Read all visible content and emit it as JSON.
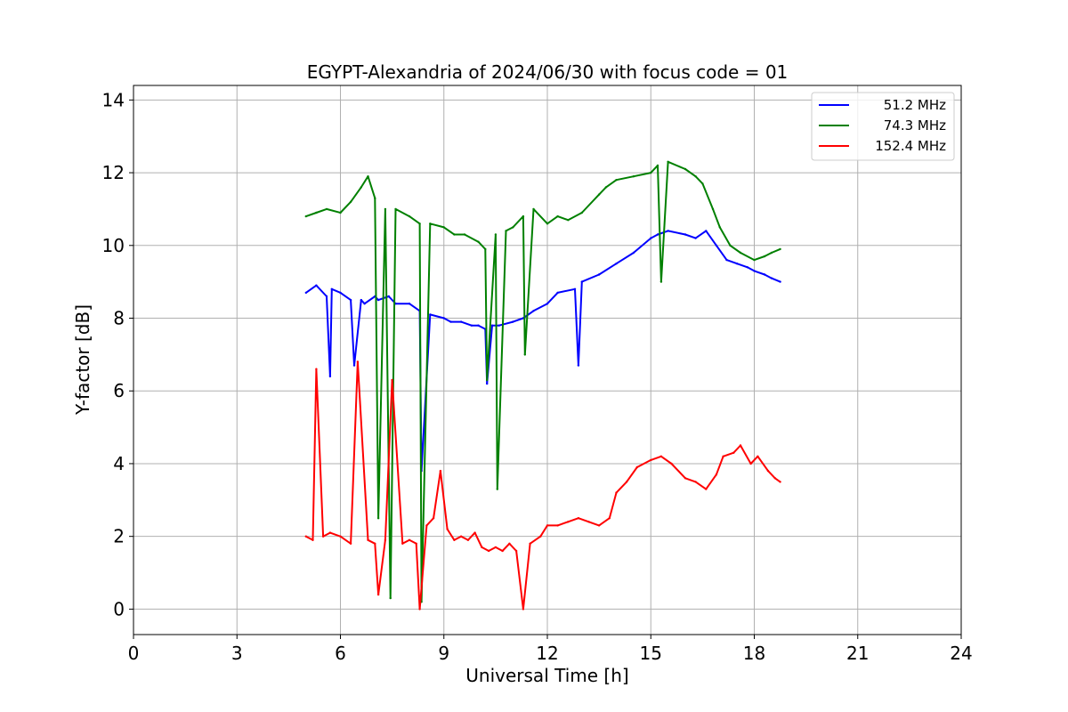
{
  "chart_data": {
    "type": "line",
    "title": "EGYPT-Alexandria of 2024/06/30 with focus code = 01",
    "xlabel": "Universal Time [h]",
    "ylabel": "Y-factor [dB]",
    "xlim": [
      0,
      24
    ],
    "ylim": [
      -0.7,
      14.4
    ],
    "xticks": [
      0,
      3,
      6,
      9,
      12,
      15,
      18,
      21,
      24
    ],
    "yticks": [
      0,
      2,
      4,
      6,
      8,
      10,
      12,
      14
    ],
    "grid": true,
    "legend_position": "top-right",
    "series": [
      {
        "name": "51.2 MHz",
        "color": "#0000ff",
        "x": [
          5.0,
          5.3,
          5.6,
          5.7,
          5.75,
          6.0,
          6.3,
          6.4,
          6.6,
          6.7,
          7.0,
          7.1,
          7.4,
          7.6,
          8.0,
          8.3,
          8.35,
          8.6,
          9.0,
          9.2,
          9.5,
          9.8,
          10.0,
          10.2,
          10.25,
          10.4,
          10.6,
          11.0,
          11.3,
          11.6,
          12.0,
          12.3,
          12.8,
          12.9,
          13.0,
          13.5,
          14.0,
          14.5,
          15.0,
          15.2,
          15.5,
          16.0,
          16.3,
          16.6,
          16.9,
          17.2,
          17.5,
          17.8,
          18.0,
          18.3,
          18.5,
          18.75
        ],
        "y": [
          8.7,
          8.9,
          8.6,
          6.4,
          8.8,
          8.7,
          8.5,
          6.7,
          8.5,
          8.4,
          8.6,
          8.5,
          8.6,
          8.4,
          8.4,
          8.2,
          3.8,
          8.1,
          8.0,
          7.9,
          7.9,
          7.8,
          7.8,
          7.7,
          6.2,
          7.8,
          7.8,
          7.9,
          8.0,
          8.2,
          8.4,
          8.7,
          8.8,
          6.7,
          9.0,
          9.2,
          9.5,
          9.8,
          10.2,
          10.3,
          10.4,
          10.3,
          10.2,
          10.4,
          10.0,
          9.6,
          9.5,
          9.4,
          9.3,
          9.2,
          9.1,
          9.0
        ]
      },
      {
        "name": "74.3 MHz",
        "color": "#008000",
        "x": [
          5.0,
          5.3,
          5.6,
          6.0,
          6.3,
          6.6,
          6.8,
          7.0,
          7.1,
          7.3,
          7.45,
          7.6,
          8.0,
          8.3,
          8.35,
          8.6,
          9.0,
          9.3,
          9.6,
          10.0,
          10.2,
          10.25,
          10.5,
          10.55,
          10.8,
          11.0,
          11.3,
          11.35,
          11.6,
          12.0,
          12.3,
          12.6,
          13.0,
          13.5,
          13.7,
          14.0,
          14.5,
          15.0,
          15.2,
          15.3,
          15.5,
          16.0,
          16.3,
          16.5,
          16.8,
          17.0,
          17.3,
          17.6,
          18.0,
          18.3,
          18.5,
          18.75
        ],
        "y": [
          10.8,
          10.9,
          11.0,
          10.9,
          11.2,
          11.6,
          11.9,
          11.3,
          2.5,
          11.0,
          0.3,
          11.0,
          10.8,
          10.6,
          0.2,
          10.6,
          10.5,
          10.3,
          10.3,
          10.1,
          9.9,
          6.3,
          10.3,
          3.3,
          10.4,
          10.5,
          10.8,
          7.0,
          11.0,
          10.6,
          10.8,
          10.7,
          10.9,
          11.4,
          11.6,
          11.8,
          11.9,
          12.0,
          12.2,
          9.0,
          12.3,
          12.1,
          11.9,
          11.7,
          11.0,
          10.5,
          10.0,
          9.8,
          9.6,
          9.7,
          9.8,
          9.9
        ]
      },
      {
        "name": "152.4 MHz",
        "color": "#ff0000",
        "x": [
          5.0,
          5.2,
          5.3,
          5.5,
          5.7,
          6.0,
          6.3,
          6.5,
          6.8,
          7.0,
          7.1,
          7.3,
          7.5,
          7.8,
          8.0,
          8.2,
          8.3,
          8.5,
          8.7,
          8.9,
          9.1,
          9.3,
          9.5,
          9.7,
          9.9,
          10.1,
          10.3,
          10.5,
          10.7,
          10.9,
          11.1,
          11.3,
          11.5,
          11.8,
          12.0,
          12.3,
          12.6,
          12.9,
          13.2,
          13.5,
          13.8,
          14.0,
          14.3,
          14.6,
          15.0,
          15.3,
          15.6,
          16.0,
          16.3,
          16.6,
          16.9,
          17.1,
          17.4,
          17.6,
          17.9,
          18.1,
          18.4,
          18.6,
          18.75
        ],
        "y": [
          2.0,
          1.9,
          6.6,
          2.0,
          2.1,
          2.0,
          1.8,
          6.8,
          1.9,
          1.8,
          0.4,
          1.9,
          6.3,
          1.8,
          1.9,
          1.8,
          0.0,
          2.3,
          2.5,
          3.8,
          2.2,
          1.9,
          2.0,
          1.9,
          2.1,
          1.7,
          1.6,
          1.7,
          1.6,
          1.8,
          1.6,
          0.0,
          1.8,
          2.0,
          2.3,
          2.3,
          2.4,
          2.5,
          2.4,
          2.3,
          2.5,
          3.2,
          3.5,
          3.9,
          4.1,
          4.2,
          4.0,
          3.6,
          3.5,
          3.3,
          3.7,
          4.2,
          4.3,
          4.5,
          4.0,
          4.2,
          3.8,
          3.6,
          3.5
        ]
      }
    ]
  }
}
